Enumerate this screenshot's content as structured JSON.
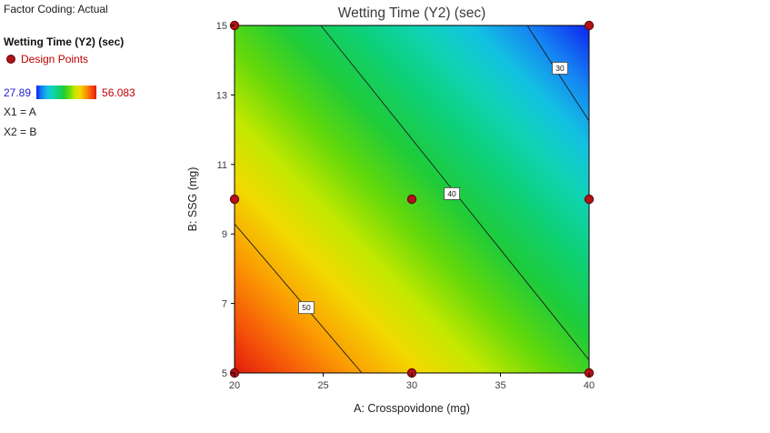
{
  "sidebar": {
    "factor_coding": "Factor Coding: Actual",
    "response_title": "Wetting Time (Y2) (sec)",
    "design_points_label": "Design Points",
    "scale_min": "27.89",
    "scale_max": "56.083",
    "x1": "X1 = A",
    "x2": "X2 = B"
  },
  "colors": {
    "design_point_fill": "#b21117",
    "design_point_border": "#66090c",
    "scale_min_text": "#2525cc",
    "scale_max_text": "#c00000",
    "design_points_text": "#c00000",
    "contour_line": "#1a1a1a",
    "plot_border": "#000000"
  },
  "chart_data": {
    "type": "heatmap",
    "subtype": "contour",
    "title": "Wetting Time (Y2) (sec)",
    "xlabel": "A: Crosspovidone (mg)",
    "ylabel": "B: SSG (mg)",
    "xlim": [
      20,
      40
    ],
    "ylim": [
      5,
      15
    ],
    "x_ticks": [
      20,
      25,
      30,
      35,
      40
    ],
    "y_ticks": [
      5,
      7,
      9,
      11,
      13,
      15
    ],
    "z_min": 27.89,
    "z_max": 56.083,
    "legend_orientation": "horizontal",
    "grid": false,
    "contour_lines": [
      {
        "level": "50",
        "from": [
          20,
          9.29
        ],
        "to": [
          27.18,
          5
        ],
        "label_at": [
          24.05,
          6.88
        ]
      },
      {
        "level": "40",
        "from": [
          24.87,
          15
        ],
        "to": [
          40,
          5.37
        ],
        "label_at": [
          32.26,
          10.16
        ]
      },
      {
        "level": "30",
        "from": [
          36.51,
          15
        ],
        "to": [
          40,
          12.25
        ],
        "label_at": [
          38.36,
          13.77
        ]
      }
    ],
    "design_points": [
      [
        20,
        5
      ],
      [
        30,
        5
      ],
      [
        40,
        5
      ],
      [
        20,
        10
      ],
      [
        30,
        10
      ],
      [
        40,
        10
      ],
      [
        20,
        15
      ],
      [
        40,
        15
      ]
    ],
    "surface_gradient": [
      {
        "offset": 0.0,
        "color": "#e31a0e"
      },
      {
        "offset": 0.08,
        "color": "#f55708"
      },
      {
        "offset": 0.17,
        "color": "#fb9b03"
      },
      {
        "offset": 0.27,
        "color": "#f2d900"
      },
      {
        "offset": 0.36,
        "color": "#c3e800"
      },
      {
        "offset": 0.46,
        "color": "#63d80a"
      },
      {
        "offset": 0.56,
        "color": "#1ecb3a"
      },
      {
        "offset": 0.66,
        "color": "#0ed077"
      },
      {
        "offset": 0.75,
        "color": "#0fd3b4"
      },
      {
        "offset": 0.83,
        "color": "#13c1e2"
      },
      {
        "offset": 0.91,
        "color": "#1583f2"
      },
      {
        "offset": 1.0,
        "color": "#0d24f0"
      }
    ]
  }
}
